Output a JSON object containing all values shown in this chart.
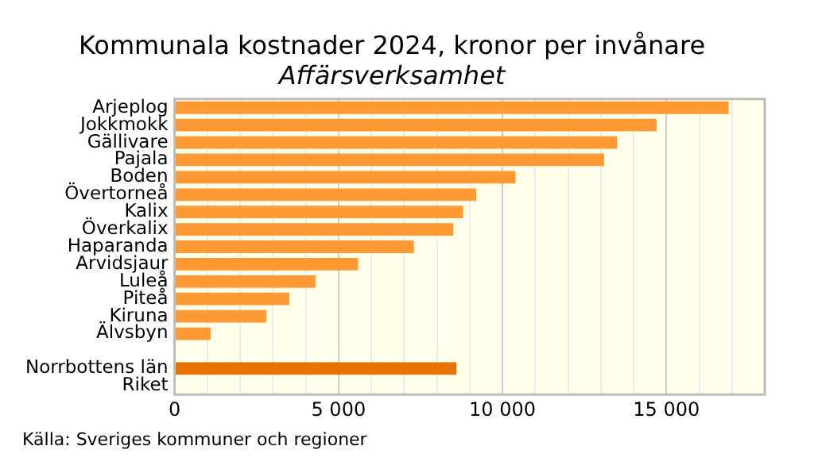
{
  "chart_data": {
    "type": "bar",
    "orientation": "horizontal",
    "title": "Kommunala kostnader 2024, kronor per invånare",
    "subtitle": "Affärsverksamhet",
    "categories": [
      "Arjeplog",
      "Jokkmokk",
      "Gällivare",
      "Pajala",
      "Boden",
      "Övertorneå",
      "Kalix",
      "Överkalix",
      "Haparanda",
      "Arvidsjaur",
      "Luleå",
      "Piteå",
      "Kiruna",
      "Älvsbyn",
      null,
      "Norrbottens län",
      "Riket"
    ],
    "values": [
      16900,
      14700,
      13500,
      13100,
      10400,
      9200,
      8800,
      8500,
      7300,
      5600,
      4300,
      3500,
      2800,
      1100,
      null,
      8600,
      null
    ],
    "colors": [
      "#ff9933",
      "#ff9933",
      "#ff9933",
      "#ff9933",
      "#ff9933",
      "#ff9933",
      "#ff9933",
      "#ff9933",
      "#ff9933",
      "#ff9933",
      "#ff9933",
      "#ff9933",
      "#ff9933",
      "#ff9933",
      "#ff9933",
      "#e67300",
      "#ff9933"
    ],
    "xlim": [
      0,
      18000
    ],
    "xticks": [
      0,
      {
        "value": 1000,
        "label": null
      },
      {
        "value": 2000,
        "label": null
      },
      {
        "value": 3000,
        "label": null
      },
      {
        "value": 4000,
        "label": null
      },
      {
        "value": 5000,
        "label": "5 000"
      },
      {
        "value": 6000,
        "label": null
      },
      {
        "value": 7000,
        "label": null
      },
      {
        "value": 8000,
        "label": null
      },
      {
        "value": 9000,
        "label": null
      },
      {
        "value": 10000,
        "label": "10 000"
      },
      {
        "value": 11000,
        "label": null
      },
      {
        "value": 12000,
        "label": null
      },
      {
        "value": 13000,
        "label": null
      },
      {
        "value": 14000,
        "label": null
      },
      {
        "value": 15000,
        "label": "15 000"
      },
      {
        "value": 16000,
        "label": null
      },
      {
        "value": 17000,
        "label": null
      }
    ],
    "grid": "x",
    "annotations": [
      "Källa: Sveriges kommuner och regioner"
    ]
  }
}
